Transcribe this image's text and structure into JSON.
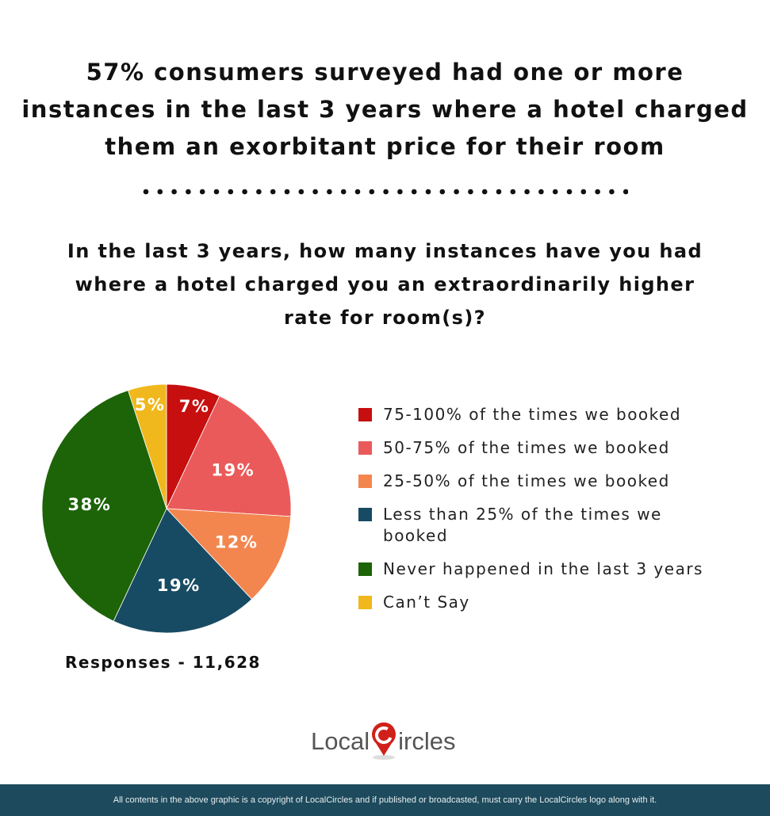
{
  "headline": [
    "57% consumers surveyed had one or more",
    "instances in the last 3 years where a hotel charged",
    "them an exorbitant price for their room"
  ],
  "question": [
    "In the last 3 years, how many instances have you had",
    "where a hotel charged you an extraordinarily higher",
    "rate for room(s)?"
  ],
  "chart_data": {
    "type": "pie",
    "categories": [
      "75-100% of the times we booked",
      "50-75% of the times we booked",
      "25-50% of the times we booked",
      "Less than 25% of the times we booked",
      "Never happened in the last 3 years",
      "Can’t Say"
    ],
    "values": [
      7,
      19,
      12,
      19,
      38,
      5
    ],
    "labels": [
      "7%",
      "19%",
      "12%",
      "19%",
      "38%",
      "5%"
    ],
    "colors": [
      "#c70f0f",
      "#eb5a5a",
      "#f3864f",
      "#174b63",
      "#1c6407",
      "#f0b81c"
    ],
    "legend_placement": "right"
  },
  "responses": "Responses - 11,628",
  "logo": {
    "text_left": "Local",
    "text_right": "ircles",
    "brand_color": "#d0201a"
  },
  "footer": "All contents in the above graphic is a copyright of LocalCircles and if published or broadcasted, must carry the LocalCircles logo along with it."
}
